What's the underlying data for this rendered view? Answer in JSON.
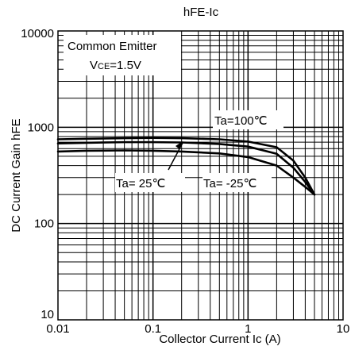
{
  "chart_data": {
    "type": "line",
    "title": "hFE-Ic",
    "xlabel": "Collector  Current  Ic (A)",
    "ylabel": "DC Current Gain hFE",
    "xscale": "log",
    "yscale": "log",
    "xlim": [
      0.01,
      10
    ],
    "ylim": [
      10,
      10000
    ],
    "x_ticks": [
      "0.01",
      "0.1",
      "1",
      "10"
    ],
    "y_ticks": [
      "10",
      "100",
      "1000",
      "10000"
    ],
    "grid": true,
    "annotation": {
      "line1": "Common Emitter",
      "line2_main": "V",
      "line2_sub": "CE",
      "line2_rest": "=1.5V"
    },
    "series": [
      {
        "name": "Ta=100℃",
        "x": [
          0.01,
          0.02,
          0.05,
          0.1,
          0.2,
          0.5,
          1,
          2,
          3,
          4,
          5
        ],
        "y": [
          750,
          760,
          770,
          775,
          770,
          750,
          710,
          620,
          450,
          300,
          200
        ]
      },
      {
        "name": "Ta= 25℃",
        "x": [
          0.01,
          0.02,
          0.05,
          0.1,
          0.2,
          0.5,
          1,
          2,
          3,
          4,
          5
        ],
        "y": [
          680,
          690,
          700,
          700,
          695,
          670,
          630,
          530,
          380,
          270,
          200
        ]
      },
      {
        "name": "Ta= -25℃",
        "x": [
          0.01,
          0.02,
          0.05,
          0.1,
          0.2,
          0.5,
          1,
          2,
          3,
          4,
          5
        ],
        "y": [
          560,
          570,
          575,
          570,
          560,
          535,
          490,
          400,
          300,
          240,
          200
        ]
      }
    ],
    "line_color": "#000000"
  }
}
